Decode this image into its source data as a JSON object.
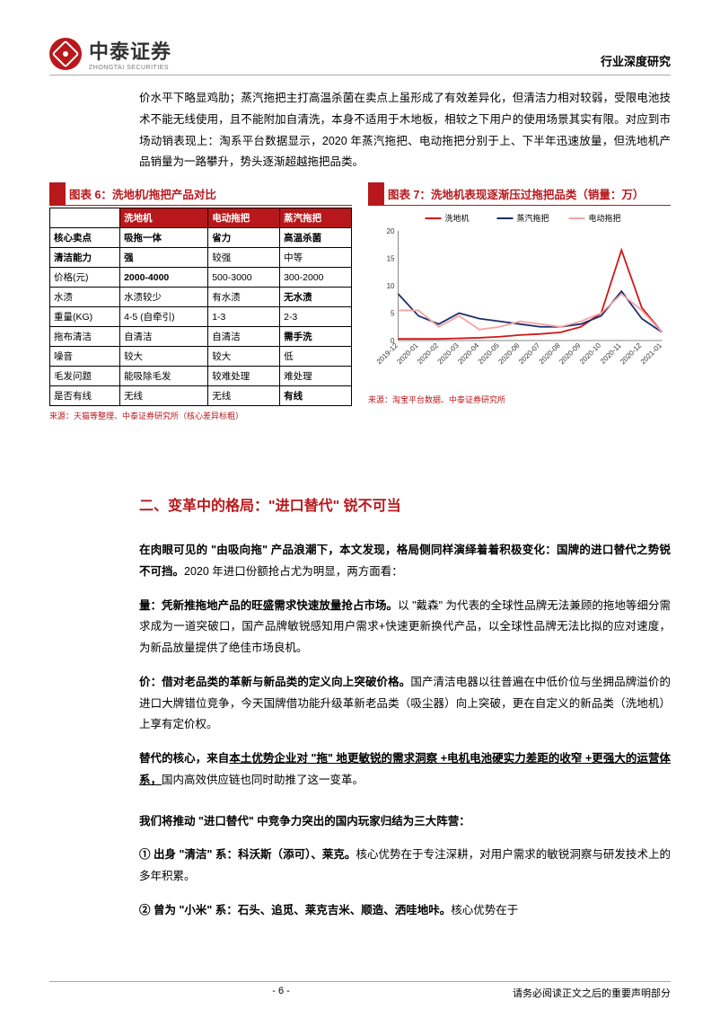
{
  "header": {
    "logo_cn": "中泰证券",
    "logo_en": "ZHONGTAI SECURITIES",
    "right": "行业深度研究"
  },
  "intro_para": "价水平下略显鸡肋；蒸汽拖把主打高温杀菌在卖点上虽形成了有效差异化，但清洁力相对较弱，受限电池技术不能无线使用，且不能附加自清洗，本身不适用于木地板，相较之下用户的使用场景其实有限。对应到市场动销表现上：淘系平台数据显示，2020 年蒸汽拖把、电动拖把分别于上、下半年迅速放量，但洗地机产品销量为一路攀升，势头逐渐超越拖把品类。",
  "table": {
    "title": "图表 6：洗地机/拖把产品对比",
    "columns": [
      "",
      "洗地机",
      "电动拖把",
      "蒸汽拖把"
    ],
    "rows": [
      [
        "核心卖点",
        "吸拖一体",
        "省力",
        "高温杀菌"
      ],
      [
        "清洁能力",
        "强",
        "较强",
        "中等"
      ],
      [
        "价格(元)",
        "2000-4000",
        "500-3000",
        "300-2000"
      ],
      [
        "水渍",
        "水渍较少",
        "有水渍",
        "无水渍"
      ],
      [
        "重量(KG)",
        "4-5 (自牵引)",
        "1-3",
        "2-3"
      ],
      [
        "拖布清洁",
        "自清洁",
        "自清洁",
        "需手洗"
      ],
      [
        "噪音",
        "较大",
        "较大",
        "低"
      ],
      [
        "毛发问题",
        "能吸除毛发",
        "较难处理",
        "难处理"
      ],
      [
        "是否有线",
        "无线",
        "无线",
        "有线"
      ]
    ],
    "bold_cells": [
      [
        0,
        0
      ],
      [
        0,
        1
      ],
      [
        0,
        2
      ],
      [
        0,
        3
      ],
      [
        1,
        0
      ],
      [
        1,
        1
      ],
      [
        2,
        1
      ],
      [
        3,
        3
      ],
      [
        5,
        3
      ],
      [
        8,
        3
      ]
    ],
    "source": "来源：天猫等整理、中泰证券研究所（核心差异标粗）"
  },
  "chart": {
    "title": "图表 7：洗地机表现逐渐压过拖把品类（销量：万）",
    "type": "line",
    "legend": [
      "洗地机",
      "蒸汽拖把",
      "电动拖把"
    ],
    "colors": {
      "洗地机": "#d01818",
      "蒸汽拖把": "#1a2f6b",
      "电动拖把": "#f5a3a3"
    },
    "x_labels": [
      "2019-12",
      "2020-01",
      "2020-02",
      "2020-03",
      "2020-04",
      "2020-05",
      "2020-06",
      "2020-07",
      "2020-08",
      "2020-09",
      "2020-10",
      "2020-11",
      "2020-12",
      "2021-01"
    ],
    "y_ticks": [
      0,
      5,
      10,
      15,
      20
    ],
    "ylim": [
      0,
      20
    ],
    "series": {
      "洗地机": [
        0.3,
        0.3,
        0.3,
        0.4,
        0.5,
        0.7,
        1.0,
        1.2,
        1.5,
        2.5,
        5.0,
        16.5,
        6.0,
        1.5
      ],
      "蒸汽拖把": [
        8.5,
        4.5,
        3.0,
        5.0,
        4.0,
        3.5,
        3.0,
        2.5,
        2.5,
        3.0,
        4.5,
        9.0,
        4.0,
        1.5
      ],
      "电动拖把": [
        5.5,
        5.5,
        2.5,
        4.5,
        2.0,
        2.5,
        3.5,
        3.0,
        2.5,
        3.5,
        5.0,
        8.5,
        5.5,
        1.5
      ]
    },
    "line_width": 1.8,
    "background_color": "#ffffff",
    "axis_color": "#888",
    "label_fontsize": 8,
    "source": "来源：淘宝平台数据、中泰证券研究所"
  },
  "section2": {
    "heading": "二、变革中的格局：\"进口替代\" 锐不可当",
    "p1_a": "在肉眼可见的 \"由吸向拖\" 产品浪潮下，本文发现，格局侧同样演绎着着积极变化：国牌的进口替代之势锐不可挡。",
    "p1_b": "2020 年进口份额抢占尤为明显，两方面看：",
    "p2_label": "量：凭新推拖地产品的旺盛需求快速放量抢占市场。",
    "p2_body": "以 \"戴森\" 为代表的全球性品牌无法兼顾的拖地等细分需求成为一道突破口，国产品牌敏锐感知用户需求+快速更新换代产品，以全球性品牌无法比拟的应对速度，为新品放量提供了绝佳市场良机。",
    "p3_label": "价：借对老品类的革新与新品类的定义向上突破价格。",
    "p3_body": "国产清洁电器以往普遍在中低价位与坐拥品牌溢价的进口大牌错位竞争，今天国牌借功能升级革新老品类（吸尘器）向上突破，更在自定义的新品类（洗地机）上享有定价权。",
    "p4_a": "替代的核心，来自",
    "p4_u": "本土优势企业对 \"拖\" 地更敏锐的需求洞察 +电机电池硬实力差距的收窄 +更强大的运营体系，",
    "p4_b": "国内高效供应链也同时助推了这一变革。",
    "p5": "我们将推动 \"进口替代\" 中竞争力突出的国内玩家归结为三大阵营：",
    "li1_label": "① 出身 \"清洁\" 系：科沃斯（添可）、莱克。",
    "li1_body": "核心优势在于专注深耕，对用户需求的敏锐洞察与研发技术上的多年积累。",
    "li2_label": "② 曾为 \"小米\" 系：石头、追觅、莱克吉米、顺造、洒哇地咔。",
    "li2_body": "核心优势在于"
  },
  "footer": {
    "page": "- 6 -",
    "disclaimer": "请务必阅读正文之后的重要声明部分"
  }
}
